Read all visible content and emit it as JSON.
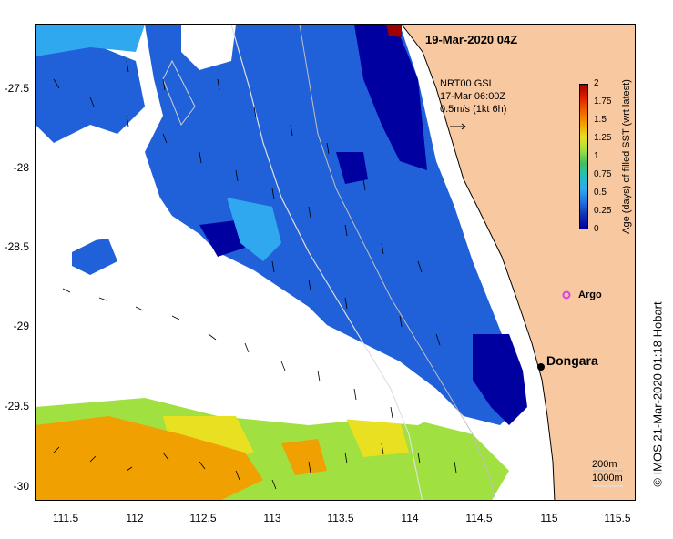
{
  "map": {
    "date_label": "19-Mar-2020 04Z",
    "vector_title_line1": "NRT00 GSL",
    "vector_title_line2": "17-Mar 06:00Z",
    "vector_scale_label": "0.5m/s (1kt 6h)",
    "place_labels": {
      "argo": "Argo",
      "dongara": "Dongara"
    },
    "isobath_labels": {
      "shallow": "200m",
      "deep": "1000m"
    },
    "credit": "© IMOS 21-Mar-2020 01:18 Hobart",
    "lat_ticks": [
      "-27.5",
      "-28",
      "-28.5",
      "-29",
      "-29.5",
      "-30"
    ],
    "lon_ticks": [
      "111.5",
      "112",
      "112.5",
      "113",
      "113.5",
      "114",
      "114.5",
      "115",
      "115.5"
    ],
    "colors": {
      "land": "#f8c8a0",
      "sst_fresh": "#0000a0",
      "sst_quarter": "#2060d8",
      "sst_half": "#30a8f0",
      "sst_1day": "#a0e040",
      "sst_1_25": "#e8e020",
      "sst_1_5": "#f0a000",
      "sst_2": "#a00000",
      "argo_marker": "#e040e0"
    }
  },
  "colorbar": {
    "title": "Age (days) of filled SST (wrt latest)",
    "ticks": [
      "2",
      "1.75",
      "1.5",
      "1.25",
      "1",
      "0.75",
      "0.5",
      "0.25",
      "0"
    ],
    "colors": [
      "#a00000",
      "#e02000",
      "#f06000",
      "#f0a000",
      "#e8e020",
      "#a0e040",
      "#40c060",
      "#20c0c0",
      "#30a8f0",
      "#2070e0",
      "#1030b0",
      "#0000a0"
    ]
  }
}
